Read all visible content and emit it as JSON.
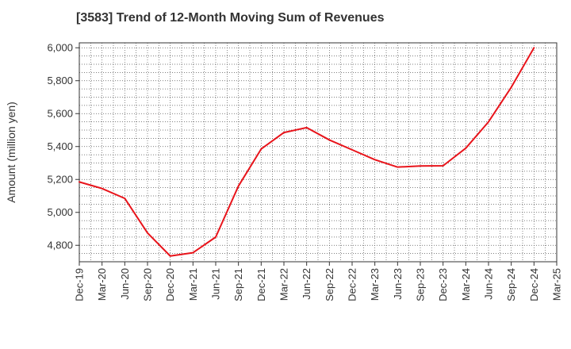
{
  "chart_data": {
    "type": "line",
    "title": "[3583]  Trend of 12-Month Moving Sum of Revenues",
    "xlabel": "",
    "ylabel": "Amount (million yen)",
    "ylim": [
      4700,
      6030
    ],
    "yticks": [
      4800,
      5000,
      5200,
      5400,
      5600,
      5800,
      6000
    ],
    "ytick_labels": [
      "4,800",
      "5,000",
      "5,200",
      "5,400",
      "5,600",
      "5,800",
      "6,000"
    ],
    "categories": [
      "Dec-19",
      "Mar-20",
      "Jun-20",
      "Sep-20",
      "Dec-20",
      "Mar-21",
      "Jun-21",
      "Sep-21",
      "Dec-21",
      "Mar-22",
      "Jun-22",
      "Sep-22",
      "Dec-22",
      "Mar-23",
      "Jun-23",
      "Sep-23",
      "Dec-23",
      "Mar-24",
      "Jun-24",
      "Sep-24",
      "Dec-24",
      "Mar-25"
    ],
    "series": [
      {
        "color": "#e8141b",
        "values": [
          5185,
          5145,
          5085,
          4875,
          4735,
          4755,
          4850,
          5160,
          5385,
          5485,
          5515,
          5440,
          5380,
          5320,
          5275,
          5282,
          5283,
          5390,
          5550,
          5760,
          6000,
          null
        ]
      }
    ],
    "grid": true,
    "legend": "none"
  }
}
